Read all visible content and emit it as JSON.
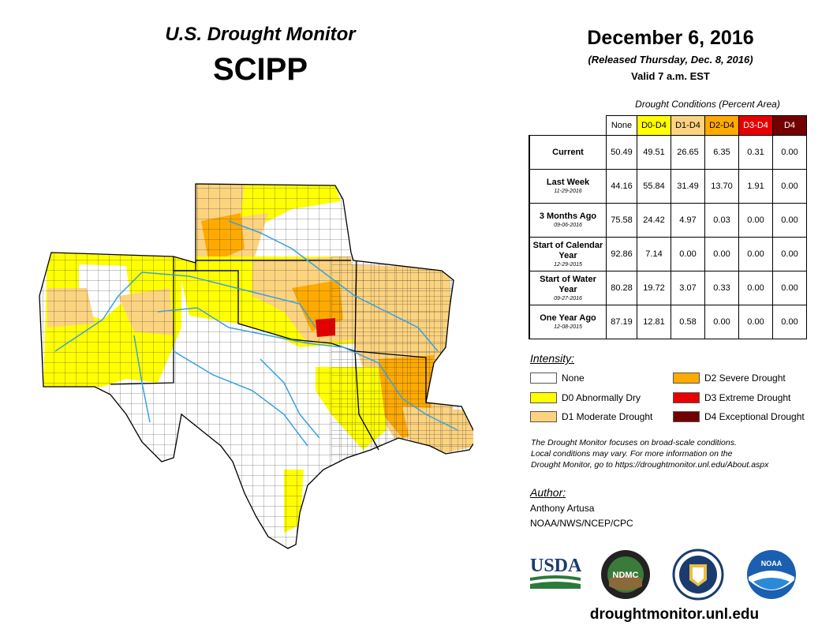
{
  "header": {
    "title": "U.S. Drought Monitor",
    "region": "SCIPP",
    "date": "December 6, 2016",
    "released": "(Released Thursday, Dec. 8, 2016)",
    "valid": "Valid 7 a.m. EST"
  },
  "table": {
    "caption": "Drought Conditions (Percent Area)",
    "columns": [
      "None",
      "D0-D4",
      "D1-D4",
      "D2-D4",
      "D3-D4",
      "D4"
    ],
    "rows": [
      {
        "label": "Current",
        "sublabel": "",
        "values": [
          "50.49",
          "49.51",
          "26.65",
          "6.35",
          "0.31",
          "0.00"
        ]
      },
      {
        "label": "Last Week",
        "sublabel": "11-29-2016",
        "values": [
          "44.16",
          "55.84",
          "31.49",
          "13.70",
          "1.91",
          "0.00"
        ]
      },
      {
        "label": "3 Months Ago",
        "sublabel": "09-06-2016",
        "values": [
          "75.58",
          "24.42",
          "4.97",
          "0.03",
          "0.00",
          "0.00"
        ]
      },
      {
        "label": "Start of Calendar Year",
        "sublabel": "12-29-2015",
        "values": [
          "92.86",
          "7.14",
          "0.00",
          "0.00",
          "0.00",
          "0.00"
        ]
      },
      {
        "label": "Start of Water Year",
        "sublabel": "09-27-2016",
        "values": [
          "80.28",
          "19.72",
          "3.07",
          "0.33",
          "0.00",
          "0.00"
        ]
      },
      {
        "label": "One Year Ago",
        "sublabel": "12-08-2015",
        "values": [
          "87.19",
          "12.81",
          "0.58",
          "0.00",
          "0.00",
          "0.00"
        ]
      }
    ]
  },
  "legend": {
    "header": "Intensity:",
    "items": [
      {
        "label": "None",
        "color": "#ffffff"
      },
      {
        "label": "D0 Abnormally Dry",
        "color": "#ffff00"
      },
      {
        "label": "D1 Moderate Drought",
        "color": "#fcd37f"
      },
      {
        "label": "D2 Severe Drought",
        "color": "#ffaa00"
      },
      {
        "label": "D3 Extreme Drought",
        "color": "#e60000"
      },
      {
        "label": "D4 Exceptional Drought",
        "color": "#730000"
      }
    ]
  },
  "note": {
    "line1": "The Drought Monitor focuses on broad-scale conditions.",
    "line2": "Local conditions may vary. For more information on the",
    "line3": "Drought Monitor, go to https://droughtmonitor.unl.edu/About.aspx"
  },
  "author": {
    "header": "Author:",
    "name": "Anthony Artusa",
    "org": "NOAA/NWS/NCEP/CPC"
  },
  "logos": {
    "usda": "USDA",
    "ndmc": "NDMC",
    "noaa": "NOAA"
  },
  "footer": {
    "url": "droughtmonitor.unl.edu"
  },
  "colors": {
    "river": "#3aa0e0",
    "none": "#ffffff",
    "d0": "#ffff00",
    "d1": "#fcd37f",
    "d2": "#ffaa00",
    "d3": "#e60000",
    "d4": "#730000"
  }
}
